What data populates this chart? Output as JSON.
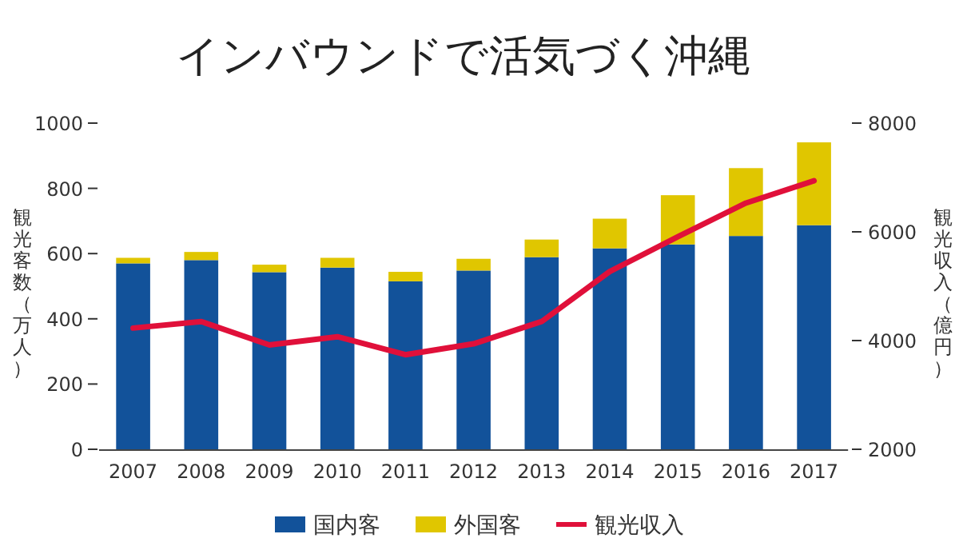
{
  "chart_data": {
    "type": "bar",
    "title": "インバウンドで活気づく沖縄",
    "ylabel": "観光客数（万人）",
    "y2label": "観光収入（億円）",
    "categories": [
      "2007",
      "2008",
      "2009",
      "2010",
      "2011",
      "2012",
      "2013",
      "2014",
      "2015",
      "2016",
      "2017"
    ],
    "stacked": true,
    "series": [
      {
        "name": "国内客",
        "color": "#12529a",
        "values": [
          570,
          580,
          543,
          557,
          515,
          548,
          589,
          616,
          628,
          654,
          687
        ]
      },
      {
        "name": "外国客",
        "color": "#e0c600",
        "values": [
          17,
          25,
          23,
          30,
          29,
          36,
          54,
          91,
          151,
          208,
          254
        ]
      },
      {
        "name": "観光収入",
        "type": "line",
        "axis": "y2",
        "color": "#e0103a",
        "values": [
          4230,
          4350,
          3920,
          4070,
          3740,
          3940,
          4350,
          5270,
          5910,
          6530,
          6940
        ]
      }
    ],
    "ylim": [
      0,
      1000
    ],
    "yticks": [
      0,
      200,
      400,
      600,
      800,
      1000
    ],
    "y2lim": [
      2000,
      8000
    ],
    "y2ticks": [
      2000,
      4000,
      6000,
      8000
    ],
    "grid": false,
    "legend": "bottom"
  }
}
